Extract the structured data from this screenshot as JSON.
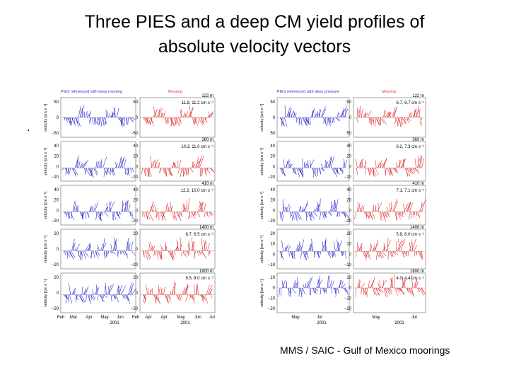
{
  "title_line1": "Three PIES and a deep CM yield profiles of",
  "title_line2": "absolute velocity vectors",
  "bullet": ".",
  "credit": "MMS / SAIC - Gulf of Mexico moorings",
  "colors": {
    "pies": "#2f2fd0",
    "mooring": "#e03030",
    "axis": "#000000"
  },
  "chart_data": [
    {
      "type": "vector_stick",
      "left_header": "PIES referenced with deep mooring",
      "right_header": "Mooring",
      "ylabel": "velocity [cm s⁻¹]",
      "xticks": [
        "Feb",
        "Mar",
        "Apr",
        "May",
        "Jun",
        "Feb",
        "Apr",
        "Apr",
        "May",
        "Jun",
        "Jul"
      ],
      "xlabels": [
        "2001",
        "2001"
      ],
      "panels": [
        {
          "depth": "122 m",
          "stat": "11.8, 11.2 cm s⁻¹",
          "yticks": [
            "50",
            "0",
            "−50"
          ],
          "ylim": [
            -60,
            60
          ]
        },
        {
          "depth": "360 m",
          "stat": "10.3, 11.0 cm s⁻¹",
          "yticks": [
            "40",
            "20",
            "0",
            "−20"
          ],
          "ylim": [
            -25,
            50
          ]
        },
        {
          "depth": "410 m",
          "stat": "12.2, 10.0 cm s⁻¹",
          "yticks": [
            "40",
            "20",
            "0",
            "−20"
          ],
          "ylim": [
            -25,
            50
          ]
        },
        {
          "depth": "1400 m",
          "stat": "8.7, 6.5 cm s⁻¹",
          "yticks": [
            "20",
            "0",
            "−20"
          ],
          "ylim": [
            -25,
            30
          ]
        },
        {
          "depth": "1800 m",
          "stat": "9.5, 8.0 cm s⁻¹",
          "yticks": [
            "20",
            "0",
            "−20"
          ],
          "ylim": [
            -25,
            30
          ]
        }
      ]
    },
    {
      "type": "vector_stick",
      "left_header": "PIES referenced with deep pressure",
      "right_header": "Mooring",
      "ylabel": "velocity [cm s⁻¹]",
      "xticks": [
        "May",
        "Jul",
        "May",
        "Jul"
      ],
      "xlabels": [
        "2001",
        "2001"
      ],
      "panels": [
        {
          "depth": "122 m",
          "stat": "6.7, 6.7 cm s⁻¹",
          "yticks": [
            "50",
            "0",
            "50"
          ],
          "ylim": [
            -60,
            60
          ]
        },
        {
          "depth": "360 m",
          "stat": "6.2, 7.3 cm s⁻¹",
          "yticks": [
            "40",
            "20",
            "0",
            "−20"
          ],
          "ylim": [
            -25,
            50
          ]
        },
        {
          "depth": "410 m",
          "stat": "7.1, 7.1 cm s⁻¹",
          "yticks": [
            "40",
            "20",
            "0",
            "−20"
          ],
          "ylim": [
            -25,
            50
          ]
        },
        {
          "depth": "1400 m",
          "stat": "5.9, 6.0 cm s⁻¹",
          "yticks": [
            "20",
            "10",
            "0",
            "−10"
          ],
          "ylim": [
            -20,
            25
          ]
        },
        {
          "depth": "1800 m",
          "stat": "4.0, 4.4 cm s⁻¹",
          "yticks": [
            "10",
            "0",
            "−10",
            "−20"
          ],
          "ylim": [
            -25,
            15
          ]
        }
      ]
    }
  ]
}
